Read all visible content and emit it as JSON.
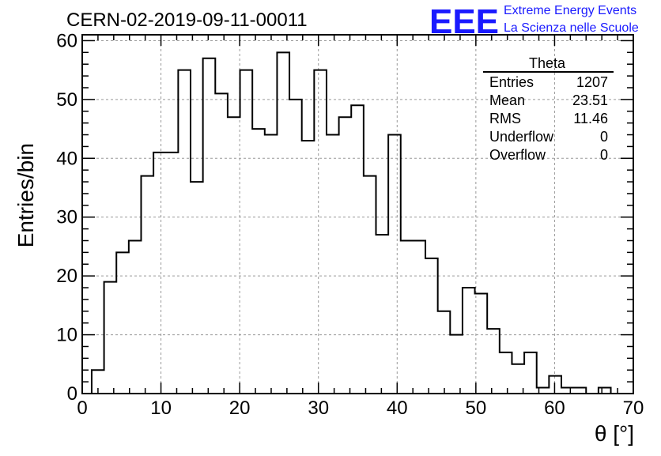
{
  "chart_data": {
    "type": "bar",
    "title": "CERN-02-2019-09-11-00011",
    "xlabel": "θ [°]",
    "ylabel": "Entries/bin",
    "xlim": [
      0,
      70
    ],
    "ylim": [
      0,
      61
    ],
    "grid": true,
    "x_ticks": [
      "0",
      "10",
      "20",
      "30",
      "40",
      "50",
      "60",
      "70"
    ],
    "y_ticks": [
      "0",
      "10",
      "20",
      "30",
      "40",
      "50",
      "60"
    ],
    "bin_edges_start": 1.2,
    "bin_width": 1.57,
    "values": [
      4,
      19,
      24,
      26,
      37,
      41,
      41,
      55,
      36,
      57,
      51,
      47,
      55,
      45,
      44,
      58,
      50,
      43,
      55,
      44,
      47,
      49,
      37,
      27,
      44,
      26,
      26,
      23,
      14,
      10,
      18,
      17,
      11,
      7,
      5,
      7,
      1,
      3,
      1,
      1,
      0,
      1,
      0
    ],
    "stats": {
      "title": "Theta",
      "rows": [
        {
          "label": "Entries",
          "value": "1207"
        },
        {
          "label": "Mean",
          "value": "23.51"
        },
        {
          "label": "RMS",
          "value": "11.46"
        },
        {
          "label": "Underflow",
          "value": "0"
        },
        {
          "label": "Overflow",
          "value": "0"
        }
      ]
    },
    "colors": {
      "line": "#000000",
      "grid": "#999999",
      "logo": "#1a1aff"
    }
  },
  "logo": {
    "mark": "EEE",
    "line1": "Extreme Energy Events",
    "line2": "La Scienza nelle Scuole"
  }
}
